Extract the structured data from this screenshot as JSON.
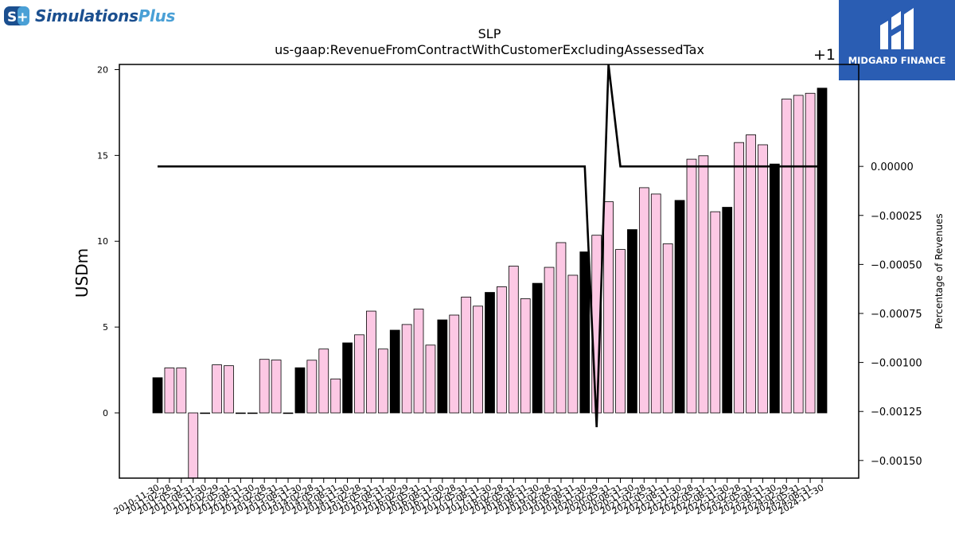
{
  "branding": {
    "left_logo_text_main": "Simulations",
    "left_logo_text_accent": "Plus",
    "left_logo_badge": "S+",
    "right_logo_text": "MIDGARD FINANCE",
    "right_logo_bg": "#2a5db3"
  },
  "chart_data": {
    "type": "bar",
    "title": "SLP",
    "subtitle": "us-gaap:RevenueFromContractWithCustomerExcludingAssessedTax",
    "ylabel": "USDm",
    "y2label": "Percentage of Revenues",
    "y2_offset_label": "+1",
    "ylim": [
      -3.8,
      20.3
    ],
    "y2lim": [
      -0.00159,
      0.00052
    ],
    "yticks": [
      0,
      5,
      10,
      15,
      20
    ],
    "y2ticks": [
      0.0,
      -0.00025,
      -0.0005,
      -0.00075,
      -0.001,
      -0.00125,
      -0.0015
    ],
    "y2ticklabels": [
      "0.00000",
      "−0.00025",
      "−0.00050",
      "−0.00075",
      "−0.00100",
      "−0.00125",
      "−0.00150"
    ],
    "categories": [
      "2010-11-30",
      "2011-02-28",
      "2011-05-31",
      "2011-08-31",
      "2011-11-30",
      "2012-02-29",
      "2012-05-31",
      "2012-08-31",
      "2012-11-30",
      "2013-02-28",
      "2013-05-31",
      "2013-08-31",
      "2013-11-30",
      "2014-02-28",
      "2014-05-31",
      "2014-08-31",
      "2014-11-30",
      "2015-02-28",
      "2015-05-31",
      "2015-08-31",
      "2015-11-30",
      "2016-02-29",
      "2016-05-31",
      "2016-08-31",
      "2016-11-30",
      "2017-02-28",
      "2017-05-31",
      "2017-08-31",
      "2017-11-30",
      "2018-02-28",
      "2018-05-31",
      "2018-08-31",
      "2018-11-30",
      "2019-02-28",
      "2019-05-31",
      "2019-08-31",
      "2019-11-30",
      "2020-02-29",
      "2020-05-31",
      "2020-08-31",
      "2020-11-30",
      "2021-02-28",
      "2021-05-31",
      "2021-08-31",
      "2021-11-30",
      "2022-02-28",
      "2022-05-31",
      "2022-08-31",
      "2022-11-30",
      "2023-02-28",
      "2023-05-31",
      "2023-08-31",
      "2023-11-30",
      "2024-02-29",
      "2024-05-31",
      "2024-08-31",
      "2024-11-30"
    ],
    "series": [
      {
        "values": [
          2.05,
          2.62,
          2.62,
          -3.8,
          0,
          2.8,
          2.75,
          0,
          0,
          3.12,
          3.08,
          0,
          2.63,
          3.07,
          3.72,
          1.98,
          4.08,
          4.55,
          5.93,
          3.72,
          4.82,
          5.15,
          6.05,
          3.95,
          5.42,
          5.7,
          6.75,
          6.22,
          7.02,
          7.35,
          8.55,
          6.65,
          7.55,
          8.48,
          9.92,
          8.02,
          9.38,
          10.35,
          12.3,
          9.52,
          10.68,
          13.12,
          12.75,
          9.85,
          12.38,
          14.78,
          14.98,
          11.72,
          11.98,
          15.75,
          16.2,
          15.62,
          14.5,
          18.28,
          18.5,
          18.62,
          18.92
        ],
        "colors_by_quarter": {
          "fiscal_year_end": "#000000",
          "other": "#fcc8e4"
        }
      },
      {
        "name": "Percentage of Revenues",
        "type": "line",
        "values": [
          0,
          0,
          0,
          0,
          0,
          0,
          0,
          0,
          0,
          0,
          0,
          0,
          0,
          0,
          0,
          0,
          0,
          0,
          0,
          0,
          0,
          0,
          0,
          0,
          0,
          0,
          0,
          0,
          0,
          0,
          0,
          0,
          0,
          0,
          0,
          0,
          0,
          -0.00133,
          0.00055,
          0,
          0,
          0,
          0,
          0,
          0,
          0,
          0,
          0,
          0,
          0,
          0,
          0,
          0,
          0,
          0,
          0,
          0
        ],
        "color": "#000000"
      }
    ],
    "grid": false,
    "legend": "none"
  }
}
